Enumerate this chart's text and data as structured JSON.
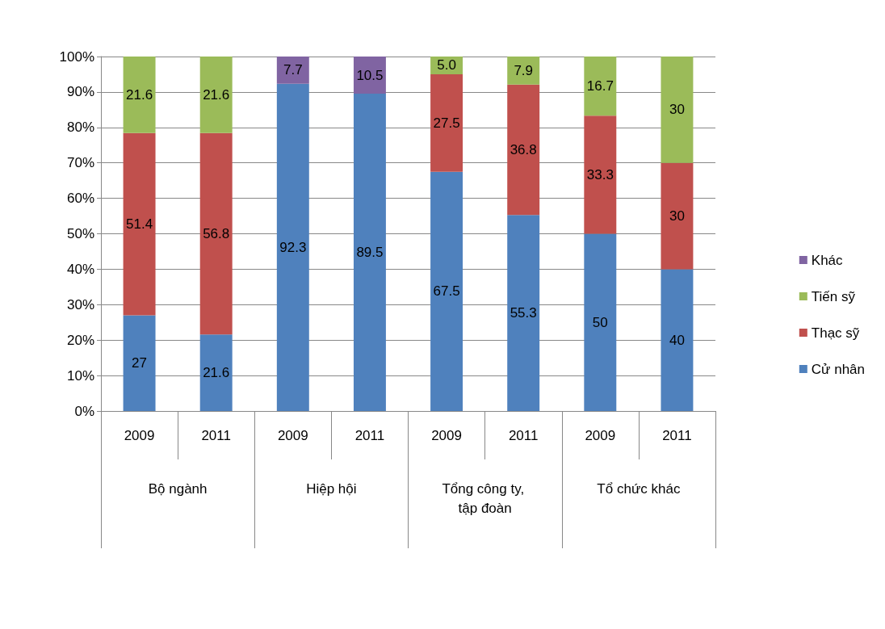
{
  "chart_data": {
    "type": "bar",
    "stacked": true,
    "categories": [
      "2009",
      "2011",
      "2009",
      "2011",
      "2009",
      "2011",
      "2009",
      "2011"
    ],
    "annotations": [
      "Bộ ngành",
      "Hiệp hội",
      "Tổng công ty, tập đoàn",
      "Tổ chức khác"
    ],
    "series": [
      {
        "name": "Cử nhân",
        "color": "#4f81bd",
        "values": [
          27,
          21.6,
          92.3,
          89.5,
          67.5,
          55.3,
          50,
          40
        ],
        "value_labels": [
          "27",
          "21.6",
          "92.3",
          "89.5",
          "67.5",
          "55.3",
          "50",
          "40"
        ]
      },
      {
        "name": "Thạc sỹ",
        "color": "#c0504d",
        "values": [
          51.4,
          56.8,
          null,
          null,
          27.5,
          36.8,
          33.3,
          30
        ],
        "value_labels": [
          "51.4",
          "56.8",
          null,
          null,
          "27.5",
          "36.8",
          "33.3",
          "30"
        ]
      },
      {
        "name": "Tiến sỹ",
        "color": "#9bbb59",
        "values": [
          21.6,
          21.6,
          null,
          null,
          5.0,
          7.9,
          16.7,
          30
        ],
        "value_labels": [
          "21.6",
          "21.6",
          null,
          null,
          "5.0",
          "7.9",
          "16.7",
          "30"
        ]
      },
      {
        "name": "Khác",
        "color": "#8064a2",
        "values": [
          null,
          null,
          7.7,
          10.5,
          null,
          null,
          null,
          null
        ],
        "value_labels": [
          null,
          null,
          "7.7",
          "10.5",
          null,
          null,
          null,
          null
        ]
      }
    ],
    "ylim": [
      0,
      100
    ],
    "yticks": [
      {
        "value": 0,
        "label": "0%"
      },
      {
        "value": 10,
        "label": "10%"
      },
      {
        "value": 20,
        "label": "20%"
      },
      {
        "value": 30,
        "label": "30%"
      },
      {
        "value": 40,
        "label": "40%"
      },
      {
        "value": 50,
        "label": "50%"
      },
      {
        "value": 60,
        "label": "60%"
      },
      {
        "value": 70,
        "label": "70%"
      },
      {
        "value": 80,
        "label": "80%"
      },
      {
        "value": 90,
        "label": "90%"
      },
      {
        "value": 100,
        "label": "100%"
      }
    ],
    "grid": "y",
    "legend": "right"
  }
}
